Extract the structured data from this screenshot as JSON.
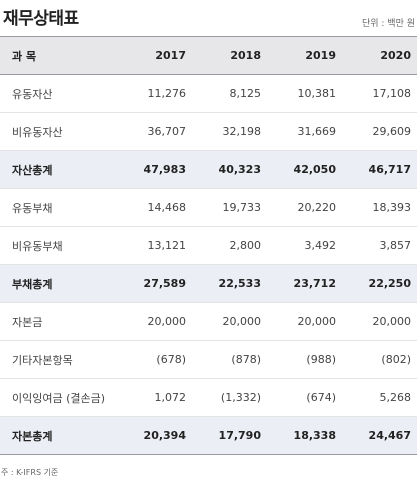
{
  "title": "재무상태표",
  "unit": "단위 : 백만 원",
  "header": {
    "label": "과  목",
    "years": [
      "2017",
      "2018",
      "2019",
      "2020"
    ]
  },
  "rows": [
    {
      "label": "유동자산",
      "values": [
        "11,276",
        "8,125",
        "10,381",
        "17,108"
      ],
      "total": false
    },
    {
      "label": "비유동자산",
      "values": [
        "36,707",
        "32,198",
        "31,669",
        "29,609"
      ],
      "total": false
    },
    {
      "label": "자산총계",
      "values": [
        "47,983",
        "40,323",
        "42,050",
        "46,717"
      ],
      "total": true
    },
    {
      "label": "유동부채",
      "values": [
        "14,468",
        "19,733",
        "20,220",
        "18,393"
      ],
      "total": false
    },
    {
      "label": "비유동부채",
      "values": [
        "13,121",
        "2,800",
        "3,492",
        "3,857"
      ],
      "total": false
    },
    {
      "label": "부채총계",
      "values": [
        "27,589",
        "22,533",
        "23,712",
        "22,250"
      ],
      "total": true
    },
    {
      "label": "자본금",
      "values": [
        "20,000",
        "20,000",
        "20,000",
        "20,000"
      ],
      "total": false
    },
    {
      "label": "기타자본항목",
      "values": [
        "(678)",
        "(878)",
        "(988)",
        "(802)"
      ],
      "total": false
    },
    {
      "label": "이익잉여금 (결손금)",
      "values": [
        "1,072",
        "(1,332)",
        "(674)",
        "5,268"
      ],
      "total": false
    },
    {
      "label": "자본총계",
      "values": [
        "20,394",
        "17,790",
        "18,338",
        "24,467"
      ],
      "total": true
    }
  ],
  "note": "주 : K-IFRS 기준"
}
